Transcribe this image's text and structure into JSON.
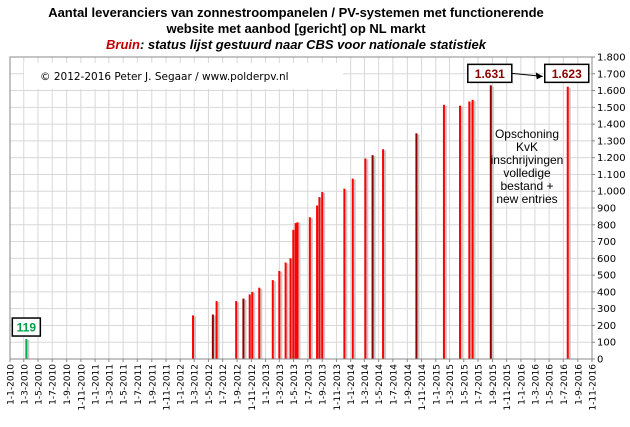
{
  "chart_data": {
    "type": "bar",
    "title": "Aantal leveranciers van zonnestroompanelen  / PV-systemen met functionerende website met aanbod [gericht] op NL markt",
    "title_lines": [
      "Aantal leveranciers van zonnestroompanelen  / PV-systemen met functionerende",
      "website met aanbod [gericht] op NL markt"
    ],
    "subtitle_prefix": "Bruin",
    "subtitle_rest": ": status lijst gestuurd naar CBS voor nationale statistiek",
    "copyright": "© 2012-2016 Peter J. Segaar / www.polderpv.nl",
    "annotation_lines": [
      "Opschoning",
      "KvK",
      "inschrijvingen",
      "volledige",
      "bestand +",
      "new entries"
    ],
    "ylim": [
      0,
      1800
    ],
    "yticks": [
      0,
      100,
      200,
      300,
      400,
      500,
      600,
      700,
      800,
      900,
      1000,
      1100,
      1200,
      1300,
      1400,
      1500,
      1600,
      1700,
      1800
    ],
    "ytick_labels": [
      "0",
      "100",
      "200",
      "300",
      "400",
      "500",
      "600",
      "700",
      "800",
      "900",
      "1.000",
      "1.100",
      "1.200",
      "1.300",
      "1.400",
      "1.500",
      "1.600",
      "1.700",
      "1.800"
    ],
    "x_range": [
      "2010-01-01",
      "2016-11-01"
    ],
    "xticks": [
      "2010-01-01",
      "2010-03-01",
      "2010-05-01",
      "2010-07-01",
      "2010-09-01",
      "2010-11-01",
      "2011-01-01",
      "2011-03-01",
      "2011-05-01",
      "2011-07-01",
      "2011-09-01",
      "2011-11-01",
      "2012-01-01",
      "2012-03-01",
      "2012-05-01",
      "2012-07-01",
      "2012-09-01",
      "2012-11-01",
      "2013-01-01",
      "2013-03-01",
      "2013-05-01",
      "2013-07-01",
      "2013-09-01",
      "2013-11-01",
      "2014-01-01",
      "2014-03-01",
      "2014-05-01",
      "2014-07-01",
      "2014-09-01",
      "2014-11-01",
      "2015-01-01",
      "2015-03-01",
      "2015-05-01",
      "2015-07-01",
      "2015-09-01",
      "2015-11-01",
      "2016-01-01",
      "2016-03-01",
      "2016-05-01",
      "2016-07-01",
      "2016-09-01",
      "2016-11-01"
    ],
    "xtick_labels": [
      "1-1-2010",
      "1-3-2010",
      "1-5-2010",
      "1-7-2010",
      "1-9-2010",
      "1-11-2010",
      "1-1-2011",
      "1-3-2011",
      "1-5-2011",
      "1-7-2011",
      "1-9-2011",
      "1-11-2011",
      "1-1-2012",
      "1-3-2012",
      "1-5-2012",
      "1-7-2012",
      "1-9-2012",
      "1-11-2012",
      "1-1-2013",
      "1-3-2013",
      "1-5-2013",
      "1-7-2013",
      "1-9-2013",
      "1-11-2013",
      "1-1-2014",
      "1-3-2014",
      "1-5-2014",
      "1-7-2014",
      "1-9-2014",
      "1-11-2014",
      "1-1-2015",
      "1-3-2015",
      "1-5-2015",
      "1-7-2015",
      "1-9-2015",
      "1-11-2015",
      "1-1-2016",
      "1-3-2016",
      "1-5-2016",
      "1-7-2016",
      "1-9-2016",
      "1-11-2016"
    ],
    "grid": true,
    "colors": {
      "normal": "#ff0000",
      "cbs": "#8b0000",
      "first": "#00b050",
      "box_red": "#c00000",
      "grid": "#d8d8d8"
    },
    "bars": [
      {
        "date": "2010-03-12",
        "value": 119,
        "kind": "first"
      },
      {
        "date": "2012-02-25",
        "value": 260,
        "kind": "normal"
      },
      {
        "date": "2012-05-20",
        "value": 265,
        "kind": "cbs"
      },
      {
        "date": "2012-06-05",
        "value": 345,
        "kind": "normal"
      },
      {
        "date": "2012-08-28",
        "value": 345,
        "kind": "normal"
      },
      {
        "date": "2012-09-28",
        "value": 360,
        "kind": "cbs"
      },
      {
        "date": "2012-10-25",
        "value": 385,
        "kind": "normal"
      },
      {
        "date": "2012-11-05",
        "value": 400,
        "kind": "normal"
      },
      {
        "date": "2012-12-05",
        "value": 425,
        "kind": "normal"
      },
      {
        "date": "2013-02-01",
        "value": 470,
        "kind": "normal"
      },
      {
        "date": "2013-03-01",
        "value": 525,
        "kind": "normal"
      },
      {
        "date": "2013-03-28",
        "value": 575,
        "kind": "normal"
      },
      {
        "date": "2013-04-18",
        "value": 600,
        "kind": "normal"
      },
      {
        "date": "2013-04-30",
        "value": 770,
        "kind": "normal"
      },
      {
        "date": "2013-05-10",
        "value": 810,
        "kind": "normal"
      },
      {
        "date": "2013-05-18",
        "value": 815,
        "kind": "normal"
      },
      {
        "date": "2013-07-10",
        "value": 845,
        "kind": "normal"
      },
      {
        "date": "2013-08-10",
        "value": 915,
        "kind": "normal"
      },
      {
        "date": "2013-08-20",
        "value": 965,
        "kind": "normal"
      },
      {
        "date": "2013-09-01",
        "value": 995,
        "kind": "normal"
      },
      {
        "date": "2013-12-05",
        "value": 1015,
        "kind": "normal"
      },
      {
        "date": "2014-01-10",
        "value": 1075,
        "kind": "normal"
      },
      {
        "date": "2014-03-05",
        "value": 1195,
        "kind": "normal"
      },
      {
        "date": "2014-04-05",
        "value": 1215,
        "kind": "cbs"
      },
      {
        "date": "2014-05-20",
        "value": 1250,
        "kind": "normal"
      },
      {
        "date": "2014-10-10",
        "value": 1345,
        "kind": "cbs"
      },
      {
        "date": "2015-02-05",
        "value": 1515,
        "kind": "normal"
      },
      {
        "date": "2015-04-15",
        "value": 1510,
        "kind": "normal"
      },
      {
        "date": "2015-05-25",
        "value": 1535,
        "kind": "normal"
      },
      {
        "date": "2015-06-08",
        "value": 1545,
        "kind": "normal"
      },
      {
        "date": "2015-08-25",
        "value": 1631,
        "kind": "cbs"
      },
      {
        "date": "2016-07-20",
        "value": 1623,
        "kind": "normal"
      }
    ],
    "callouts": [
      {
        "label": "119",
        "target_date": "2010-03-12",
        "target_value": 119,
        "color": "#00a040"
      },
      {
        "label": "1.631",
        "target_date": "2015-08-25",
        "target_value": 1631,
        "color": "#8b0000"
      },
      {
        "label": "1.623",
        "target_date": "2016-07-20",
        "target_value": 1623,
        "color": "#8b0000"
      }
    ]
  }
}
